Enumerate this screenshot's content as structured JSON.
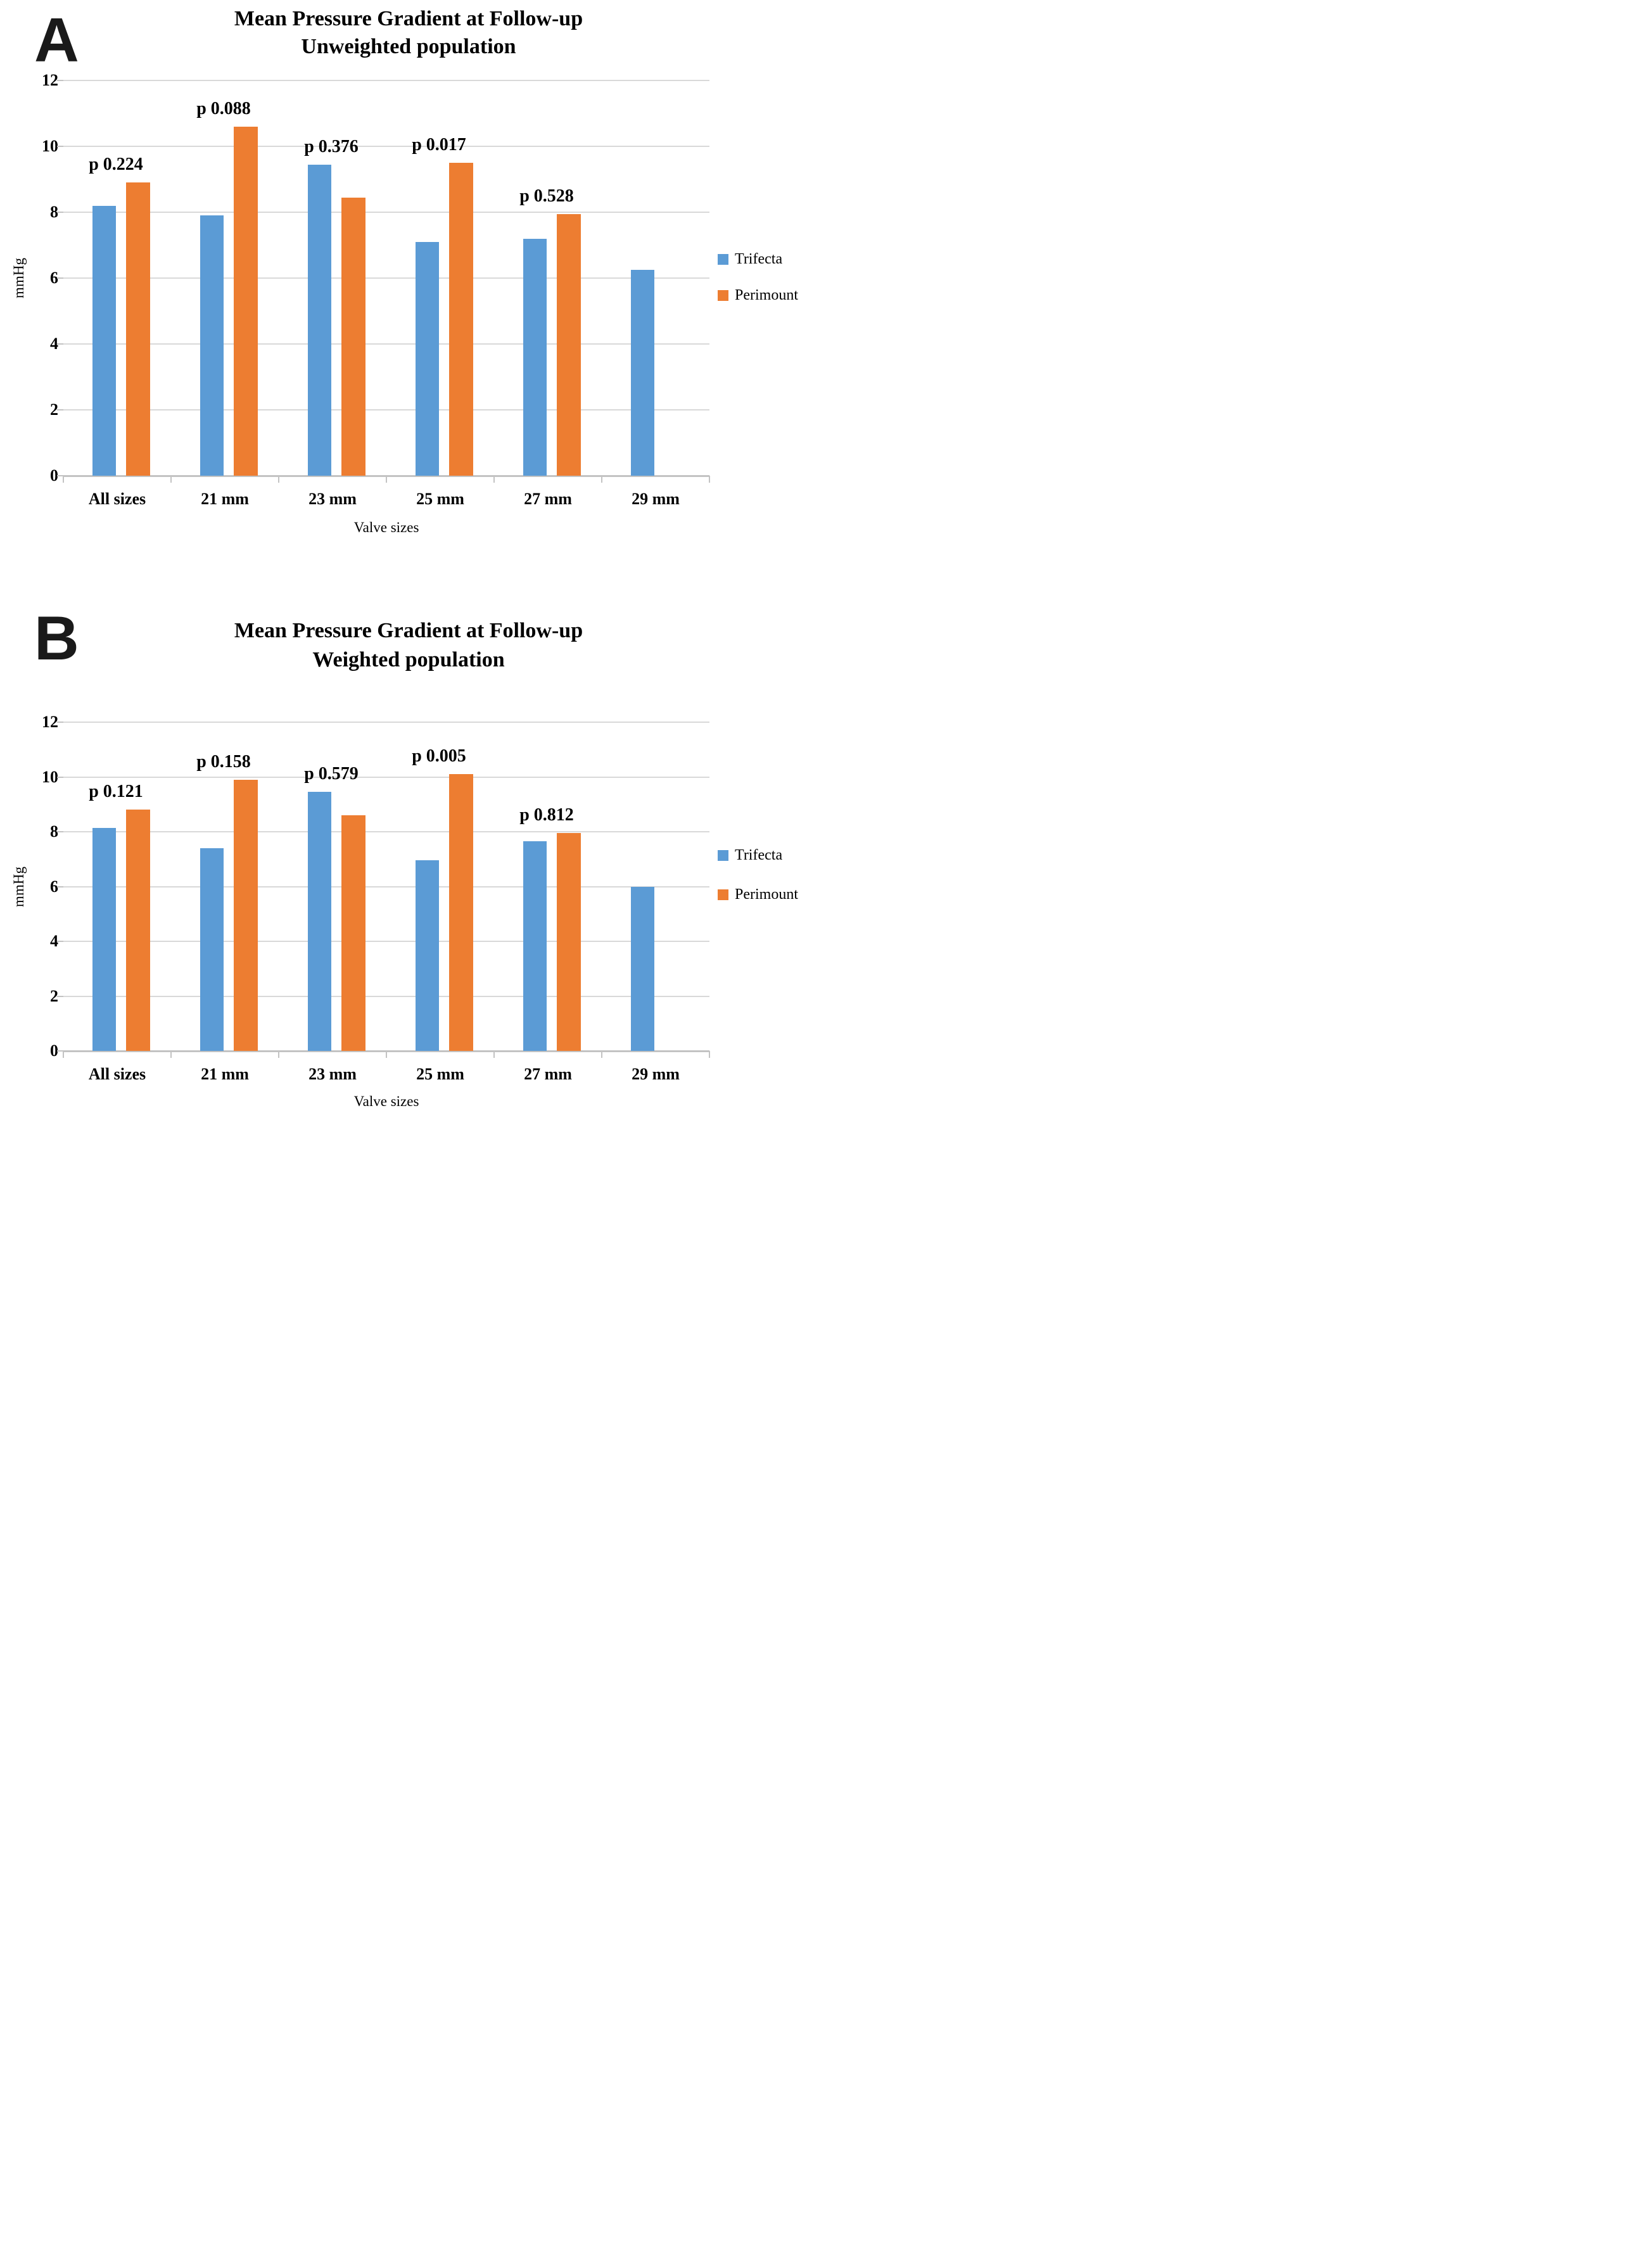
{
  "chart_data": [
    {
      "type": "bar",
      "panel_label": "A",
      "title": "Mean Pressure Gradient at Follow-up",
      "subtitle": "Unweighted population",
      "xlabel": "Valve sizes",
      "ylabel": "mmHg",
      "ylim": [
        0,
        12
      ],
      "y_ticks": [
        0,
        2,
        4,
        6,
        8,
        10,
        12
      ],
      "grid": true,
      "legend_position": "right",
      "categories": [
        "All sizes",
        "21 mm",
        "23 mm",
        "25 mm",
        "27 mm",
        "29 mm"
      ],
      "series": [
        {
          "name": "Trifecta",
          "color": "#5B9BD5",
          "values": [
            8.2,
            7.9,
            9.45,
            7.1,
            7.2,
            6.25
          ]
        },
        {
          "name": "Perimount",
          "color": "#ED7D31",
          "values": [
            8.9,
            10.6,
            8.45,
            9.5,
            7.95,
            null
          ]
        }
      ],
      "p_value_labels": [
        "p 0.224",
        "p 0.088",
        "p 0.376",
        "p 0.017",
        "p 0.528",
        null
      ]
    },
    {
      "type": "bar",
      "panel_label": "B",
      "title": "Mean Pressure Gradient at Follow-up",
      "subtitle": "Weighted population",
      "xlabel": "Valve sizes",
      "ylabel": "mmHg",
      "ylim": [
        0,
        12
      ],
      "y_ticks": [
        0,
        2,
        4,
        6,
        8,
        10,
        12
      ],
      "grid": true,
      "legend_position": "right",
      "categories": [
        "All sizes",
        "21 mm",
        "23 mm",
        "25 mm",
        "27 mm",
        "29 mm"
      ],
      "series": [
        {
          "name": "Trifecta",
          "color": "#5B9BD5",
          "values": [
            8.15,
            7.4,
            9.45,
            6.95,
            7.65,
            6.0
          ]
        },
        {
          "name": "Perimount",
          "color": "#ED7D31",
          "values": [
            8.8,
            9.9,
            8.6,
            10.1,
            7.95,
            null
          ]
        }
      ],
      "p_value_labels": [
        "p 0.121",
        "p 0.158",
        "p 0.579",
        "p 0.005",
        "p 0.812",
        null
      ]
    }
  ],
  "colors": {
    "trifecta": "#5B9BD5",
    "perimount": "#ED7D31",
    "gridline": "#D9D9D9",
    "axis": "#C3C3C3"
  }
}
